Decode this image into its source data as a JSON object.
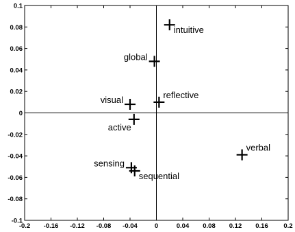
{
  "chart_data": {
    "type": "scatter",
    "title": "",
    "xlabel": "",
    "ylabel": "",
    "xlim": [
      -0.2,
      0.2
    ],
    "ylim": [
      -0.1,
      0.1
    ],
    "grid": false,
    "zero_lines": true,
    "marker": "+",
    "colors": {
      "marker": "#000000",
      "axes": "#000000",
      "background": "#ffffff"
    },
    "x_ticks": [
      {
        "value": -0.2,
        "label": "-0.2"
      },
      {
        "value": -0.16,
        "label": "-0.16"
      },
      {
        "value": -0.12,
        "label": "-0.12"
      },
      {
        "value": -0.08,
        "label": "-0.08"
      },
      {
        "value": -0.04,
        "label": "-0.04"
      },
      {
        "value": 0,
        "label": "0"
      },
      {
        "value": 0.04,
        "label": "0.04"
      },
      {
        "value": 0.08,
        "label": "0.08"
      },
      {
        "value": 0.12,
        "label": "0.12"
      },
      {
        "value": 0.16,
        "label": "0.16"
      },
      {
        "value": 0.2,
        "label": "0.2"
      }
    ],
    "y_ticks": [
      {
        "value": 0.1,
        "label": "0.1"
      },
      {
        "value": 0.08,
        "label": "0.08"
      },
      {
        "value": 0.06,
        "label": "0.06"
      },
      {
        "value": 0.04,
        "label": "0.04"
      },
      {
        "value": 0.02,
        "label": "0.02"
      },
      {
        "value": 0,
        "label": "0"
      },
      {
        "value": -0.02,
        "label": "-0.02"
      },
      {
        "value": -0.04,
        "label": "-0.04"
      },
      {
        "value": -0.06,
        "label": "-0.06"
      },
      {
        "value": -0.08,
        "label": "-0.08"
      },
      {
        "value": -0.1,
        "label": "-0.1"
      }
    ],
    "points": [
      {
        "label": "intuitive",
        "x": 0.02,
        "y": 0.082,
        "label_anchor": "below-right"
      },
      {
        "label": "global",
        "x": -0.003,
        "y": 0.048,
        "label_anchor": "left"
      },
      {
        "label": "visual",
        "x": -0.04,
        "y": 0.008,
        "label_anchor": "left"
      },
      {
        "label": "reflective",
        "x": 0.004,
        "y": 0.01,
        "label_anchor": "above-right"
      },
      {
        "label": "active",
        "x": -0.034,
        "y": -0.006,
        "label_anchor": "below-left"
      },
      {
        "label": "verbal",
        "x": 0.13,
        "y": -0.039,
        "label_anchor": "above-right"
      },
      {
        "label": "sensing",
        "x": -0.038,
        "y": -0.051,
        "label_anchor": "left"
      },
      {
        "label": "sequential",
        "x": -0.033,
        "y": -0.054,
        "label_anchor": "below-right"
      }
    ]
  }
}
